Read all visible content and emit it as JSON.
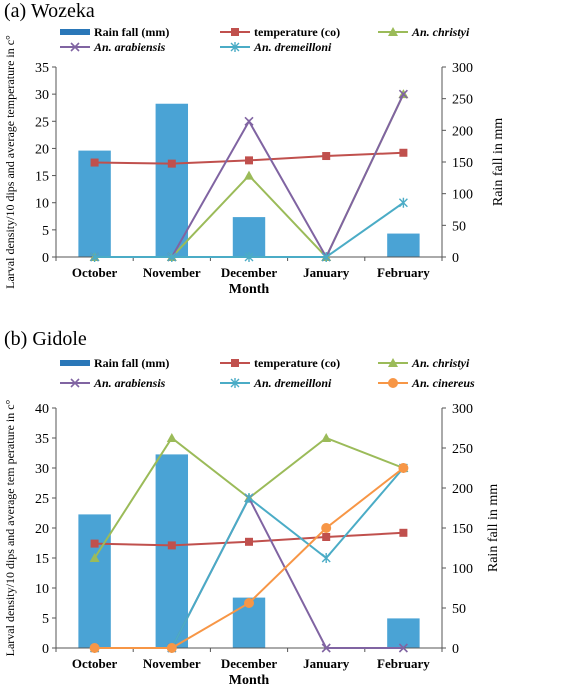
{
  "chart_data": [
    {
      "panel": "(a) Wozeka",
      "type": "bar+line",
      "categories": [
        "October",
        "November",
        "December",
        "January",
        "February"
      ],
      "xlabel": "Month",
      "ylabel": "Larval density/10 dips and average temperature in c°",
      "y2label": "Rain fall in mm",
      "ylim": [
        0,
        35
      ],
      "yticks": [
        0,
        5,
        10,
        15,
        20,
        25,
        30,
        35
      ],
      "y2lim": [
        0,
        300
      ],
      "y2ticks": [
        0,
        50,
        100,
        150,
        200,
        250,
        300
      ],
      "grid": false,
      "legend": "top",
      "bar_series": {
        "name": "Rain fall (mm)",
        "values": [
          168,
          242,
          63,
          0,
          37
        ],
        "color": "#4aa3d5"
      },
      "series": [
        {
          "name": "temperature (co)",
          "values": [
            17.4,
            17.2,
            17.8,
            18.6,
            19.2
          ],
          "color": "#c0504d",
          "marker": "square"
        },
        {
          "name": "An. christyi",
          "values": [
            0,
            0,
            15,
            0,
            30
          ],
          "color": "#9bbb59",
          "marker": "triangle"
        },
        {
          "name": "An. arabiensis",
          "values": [
            0,
            0,
            25,
            0,
            30
          ],
          "color": "#8064a2",
          "marker": "x"
        },
        {
          "name": "An. dremeilloni",
          "values": [
            0,
            0,
            0,
            0,
            10
          ],
          "color": "#4bacc6",
          "marker": "star"
        }
      ]
    },
    {
      "panel": "(b) Gidole",
      "type": "bar+line",
      "categories": [
        "October",
        "November",
        "December",
        "January",
        "February"
      ],
      "xlabel": "Month",
      "ylabel": "Larval density/10 dips and average tem perature in c°",
      "y2label": "Rain fall in mm",
      "ylim": [
        0,
        40
      ],
      "yticks": [
        0,
        5,
        10,
        15,
        20,
        25,
        30,
        35,
        40
      ],
      "y2lim": [
        0,
        300
      ],
      "y2ticks": [
        0,
        50,
        100,
        150,
        200,
        250,
        300
      ],
      "grid": false,
      "legend": "top",
      "bar_series": {
        "name": "Rain fall (mm)",
        "values": [
          167,
          242,
          63,
          0,
          37
        ],
        "color": "#4aa3d5"
      },
      "series": [
        {
          "name": "temperature (co)",
          "values": [
            17.4,
            17.1,
            17.7,
            18.5,
            19.2
          ],
          "color": "#c0504d",
          "marker": "square"
        },
        {
          "name": "An. christyi",
          "values": [
            15,
            35,
            25,
            35,
            30
          ],
          "color": "#9bbb59",
          "marker": "triangle"
        },
        {
          "name": "An. arabiensis",
          "values": [
            0,
            0,
            25,
            0,
            0
          ],
          "color": "#8064a2",
          "marker": "x"
        },
        {
          "name": "An. dremeilloni",
          "values": [
            0,
            0,
            25,
            15,
            30
          ],
          "color": "#4bacc6",
          "marker": "star"
        },
        {
          "name": "An. cinereus",
          "values": [
            0,
            0,
            7.5,
            20,
            30
          ],
          "color": "#f79646",
          "marker": "circle"
        }
      ]
    }
  ]
}
